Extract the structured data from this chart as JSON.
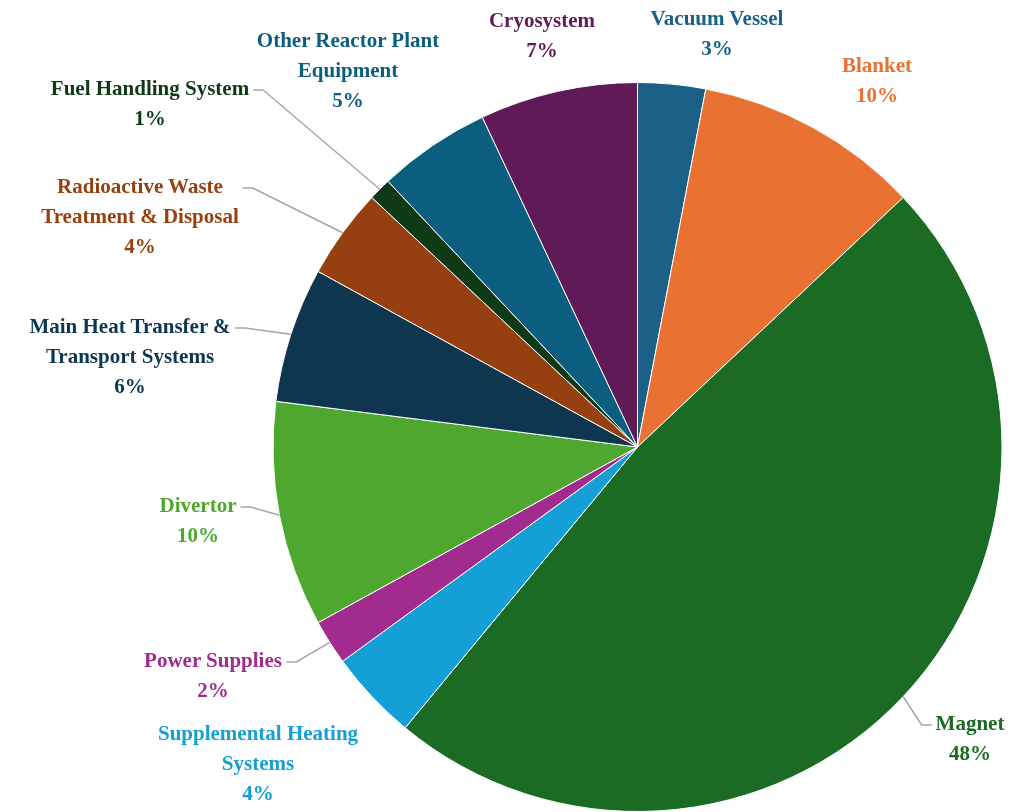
{
  "chart_data": {
    "type": "pie",
    "categories": [
      "Vacuum Vessel",
      "Blanket",
      "Magnet",
      "Supplemental Heating Systems",
      "Power Supplies",
      "Divertor",
      "Main Heat Transfer & Transport Systems",
      "Radioactive Waste Treatment & Disposal",
      "Fuel Handling System",
      "Other Reactor Plant Equipment",
      "Cryosystem"
    ],
    "values": [
      3,
      10,
      48,
      4,
      2,
      10,
      6,
      4,
      1,
      5,
      7
    ],
    "value_labels": [
      "3%",
      "10%",
      "48%",
      "4%",
      "2%",
      "10%",
      "6%",
      "4%",
      "1%",
      "5%",
      "7%"
    ],
    "colors": [
      "#1a6087",
      "#e97132",
      "#1b6b24",
      "#14a0d6",
      "#a12b8f",
      "#4ea72e",
      "#0e374f",
      "#963f11",
      "#0e3a15",
      "#0b5e80",
      "#5f1a57"
    ],
    "legend": false
  }
}
